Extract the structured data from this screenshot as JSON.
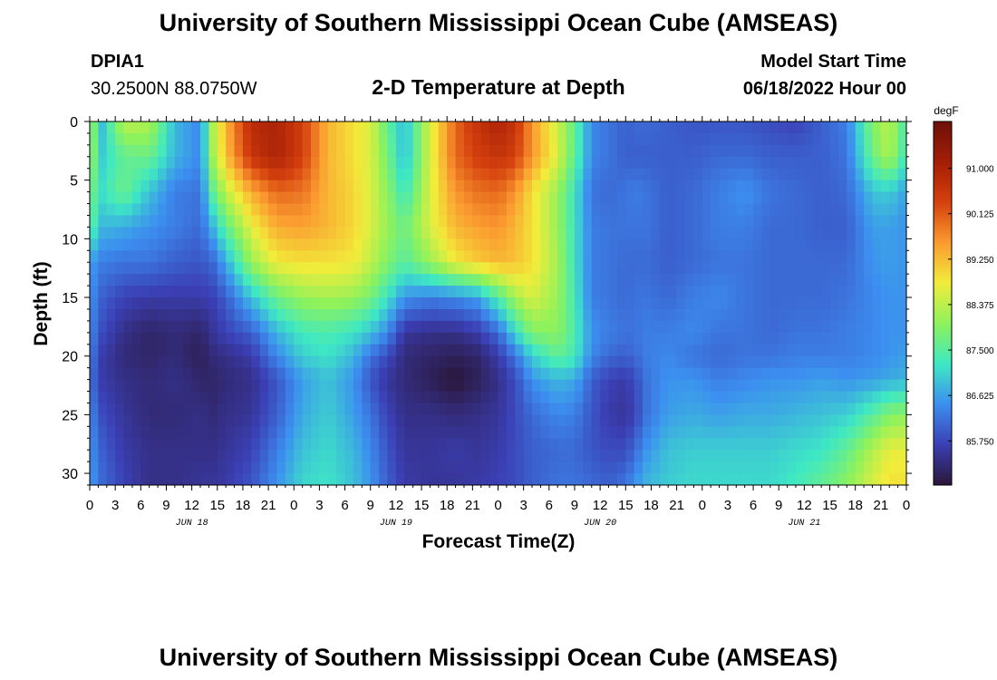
{
  "header": {
    "title": "University of Southern Mississippi Ocean Cube (AMSEAS)",
    "station": "DPIA1",
    "coords": "30.2500N  88.0750W",
    "subtitle": "2-D Temperature at Depth",
    "model_start_label": "Model Start Time",
    "model_start_value": "06/18/2022 Hour 00"
  },
  "footer": {
    "title": "University of Southern Mississippi Ocean Cube (AMSEAS)"
  },
  "chart_data": {
    "type": "heatmap",
    "title": "2-D Temperature at Depth",
    "xlabel": "Forecast Time(Z)",
    "ylabel": "Depth (ft)",
    "x_tick_labels": [
      "0",
      "3",
      "6",
      "9",
      "12",
      "15",
      "18",
      "21",
      "0",
      "3",
      "6",
      "9",
      "12",
      "15",
      "18",
      "21",
      "0",
      "3",
      "6",
      "9",
      "12",
      "15",
      "18",
      "21",
      "0",
      "3",
      "6",
      "9",
      "12",
      "15",
      "18",
      "21",
      "0"
    ],
    "date_labels": [
      "JUN 18",
      "JUN 19",
      "JUN 20",
      "JUN 21"
    ],
    "y_ticks": [
      0,
      5,
      10,
      15,
      20,
      25,
      30
    ],
    "ylim": [
      0,
      31
    ],
    "xlim_hours": [
      0,
      96
    ],
    "colorbar": {
      "unit": "degF",
      "ticks": [
        "91.000",
        "90.125",
        "89.250",
        "88.375",
        "87.500",
        "86.625",
        "85.750"
      ],
      "range": [
        84.9,
        91.9
      ],
      "colors": [
        "#2a1638",
        "#3b3fb4",
        "#3c8ef0",
        "#3ee8c4",
        "#8df25c",
        "#f2ec3a",
        "#fb9a30",
        "#d5400e",
        "#a41e06",
        "#6e0f0a"
      ]
    },
    "temperature_degF": {
      "hours": [
        0,
        1.5,
        4,
        7,
        10,
        13,
        14.5,
        16,
        19,
        22,
        25,
        28,
        31,
        33,
        35,
        37,
        40,
        43,
        45.5,
        48,
        50,
        52,
        55,
        57,
        59,
        61,
        63,
        64,
        65.5,
        68,
        71,
        74,
        77,
        80,
        83,
        86,
        89,
        92,
        94,
        96
      ],
      "depths": [
        0,
        3,
        6,
        9,
        12,
        15,
        18,
        20,
        22,
        25,
        28,
        31
      ],
      "values": [
        [
          88.2,
          86.9,
          88.4,
          88.3,
          86.8,
          86.4,
          88.3,
          89.3,
          90.8,
          91.0,
          90.4,
          89.3,
          88.9,
          88.6,
          87.6,
          86.8,
          88.6,
          90.0,
          90.6,
          91.0,
          90.6,
          89.6,
          88.5,
          87.6,
          86.4,
          86.2,
          86.0,
          86.1,
          86.1,
          86.0,
          85.9,
          85.9,
          85.9,
          85.8,
          85.7,
          86.0,
          86.3,
          87.9,
          88.4,
          87.3
        ],
        [
          88.2,
          87.0,
          87.6,
          87.7,
          86.8,
          86.4,
          88.2,
          89.2,
          90.6,
          91.0,
          90.4,
          89.3,
          88.9,
          88.6,
          87.8,
          86.8,
          88.6,
          90.0,
          90.4,
          90.6,
          90.4,
          89.6,
          88.6,
          87.6,
          86.4,
          86.2,
          86.0,
          86.0,
          86.0,
          86.0,
          86.0,
          86.1,
          86.1,
          86.0,
          86.0,
          86.0,
          86.2,
          87.7,
          88.3,
          87.2
        ],
        [
          87.8,
          87.2,
          87.7,
          86.9,
          86.3,
          86.2,
          87.6,
          88.4,
          89.4,
          90.0,
          89.9,
          89.3,
          89.0,
          88.6,
          88.0,
          87.2,
          88.6,
          89.6,
          89.9,
          90.0,
          89.6,
          88.9,
          88.1,
          87.2,
          86.2,
          86.1,
          86.2,
          86.3,
          86.2,
          86.0,
          86.1,
          86.3,
          86.5,
          86.2,
          86.1,
          86.0,
          86.1,
          86.9,
          87.0,
          86.6
        ],
        [
          87.6,
          86.8,
          86.7,
          86.5,
          86.3,
          86.1,
          86.8,
          87.6,
          88.7,
          89.4,
          89.5,
          89.3,
          89.0,
          88.6,
          88.1,
          87.7,
          88.6,
          89.3,
          89.5,
          89.6,
          89.3,
          88.9,
          88.1,
          87.2,
          86.3,
          86.2,
          86.2,
          86.2,
          86.2,
          86.0,
          86.1,
          86.3,
          86.3,
          86.1,
          86.1,
          86.0,
          86.0,
          86.6,
          86.6,
          86.5
        ],
        [
          86.6,
          86.3,
          86.2,
          86.2,
          86.0,
          85.9,
          86.1,
          86.7,
          88.1,
          88.8,
          88.9,
          88.9,
          88.8,
          88.4,
          87.9,
          87.5,
          88.1,
          88.8,
          89.1,
          89.3,
          89.2,
          88.9,
          88.2,
          87.2,
          86.3,
          86.2,
          86.1,
          86.1,
          86.1,
          86.0,
          86.1,
          86.2,
          86.2,
          86.1,
          86.1,
          86.1,
          86.1,
          86.5,
          86.6,
          86.5
        ],
        [
          86.5,
          86.0,
          85.7,
          85.6,
          85.6,
          85.6,
          85.7,
          86.0,
          86.9,
          87.7,
          88.1,
          88.2,
          88.1,
          87.8,
          87.2,
          86.5,
          86.3,
          86.4,
          86.6,
          87.4,
          88.2,
          88.6,
          88.1,
          87.3,
          86.3,
          86.2,
          86.1,
          86.2,
          86.2,
          86.1,
          86.3,
          86.4,
          86.2,
          86.1,
          86.1,
          86.1,
          86.2,
          86.4,
          86.5,
          86.5
        ],
        [
          86.4,
          85.8,
          85.4,
          85.2,
          85.3,
          85.2,
          85.5,
          85.7,
          86.0,
          86.8,
          87.3,
          87.4,
          87.2,
          86.9,
          86.4,
          85.5,
          85.4,
          85.4,
          85.6,
          86.1,
          87.1,
          87.9,
          88.0,
          87.4,
          86.5,
          86.3,
          86.2,
          86.2,
          86.3,
          86.3,
          86.4,
          86.2,
          86.2,
          86.1,
          86.2,
          86.2,
          86.3,
          86.4,
          86.5,
          86.5
        ],
        [
          86.3,
          85.6,
          85.3,
          85.2,
          85.3,
          85.1,
          85.3,
          85.4,
          85.6,
          86.4,
          87.0,
          87.2,
          86.8,
          86.2,
          85.8,
          85.3,
          85.2,
          85.1,
          85.2,
          85.6,
          86.2,
          87.0,
          87.6,
          87.3,
          86.4,
          86.1,
          86.0,
          86.1,
          86.3,
          86.4,
          86.2,
          86.1,
          86.2,
          86.2,
          86.3,
          86.3,
          86.3,
          86.4,
          86.5,
          86.6
        ],
        [
          86.2,
          85.6,
          85.4,
          85.3,
          85.4,
          85.2,
          85.2,
          85.3,
          85.4,
          85.9,
          86.6,
          86.9,
          86.5,
          85.9,
          85.5,
          85.3,
          85.1,
          84.9,
          85.1,
          85.4,
          85.8,
          86.5,
          86.8,
          86.7,
          86.0,
          85.7,
          85.6,
          85.8,
          86.2,
          86.5,
          86.5,
          86.3,
          86.4,
          86.5,
          86.5,
          86.6,
          86.5,
          86.6,
          86.7,
          86.8
        ],
        [
          86.4,
          85.8,
          85.5,
          85.3,
          85.3,
          85.4,
          85.3,
          85.4,
          85.5,
          86.0,
          86.7,
          87.0,
          86.6,
          86.2,
          85.7,
          85.4,
          85.4,
          85.3,
          85.4,
          85.5,
          85.8,
          86.1,
          86.4,
          86.3,
          85.9,
          85.6,
          85.5,
          85.7,
          86.2,
          86.6,
          86.7,
          86.6,
          86.7,
          86.7,
          86.8,
          86.9,
          87.0,
          87.5,
          87.9,
          88.0
        ],
        [
          86.5,
          86.0,
          85.6,
          85.4,
          85.4,
          85.4,
          85.4,
          85.5,
          85.7,
          86.3,
          86.9,
          87.1,
          86.8,
          86.4,
          85.9,
          85.5,
          85.5,
          85.6,
          85.5,
          85.6,
          85.8,
          86.0,
          86.1,
          86.1,
          85.9,
          85.8,
          85.8,
          86.1,
          86.5,
          86.9,
          87.0,
          87.0,
          87.0,
          87.0,
          87.1,
          87.2,
          87.6,
          88.3,
          88.7,
          88.7
        ],
        [
          86.6,
          86.1,
          85.7,
          85.4,
          85.4,
          85.5,
          85.5,
          85.6,
          85.9,
          86.5,
          87.1,
          87.2,
          86.9,
          86.5,
          86.0,
          85.6,
          85.5,
          85.5,
          85.6,
          85.7,
          85.8,
          86.0,
          86.2,
          86.2,
          86.1,
          86.0,
          86.2,
          86.5,
          86.8,
          87.0,
          87.1,
          87.1,
          87.1,
          87.1,
          87.3,
          87.6,
          88.0,
          88.6,
          88.9,
          88.9
        ]
      ]
    }
  }
}
